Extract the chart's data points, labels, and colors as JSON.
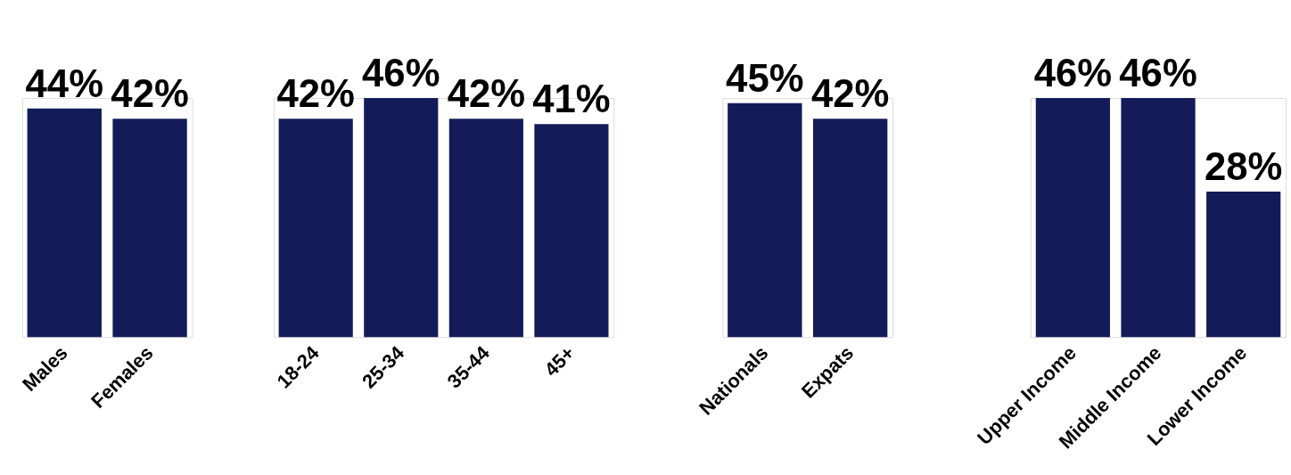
{
  "chart_data": [
    {
      "type": "bar",
      "categories": [
        "Males",
        "Females"
      ],
      "values": [
        44,
        42
      ],
      "value_labels": [
        "44%",
        "42%"
      ],
      "color": "#131c58"
    },
    {
      "type": "bar",
      "categories": [
        "18-24",
        "25-34",
        "35-44",
        "45+"
      ],
      "values": [
        42,
        46,
        42,
        41
      ],
      "value_labels": [
        "42%",
        "46%",
        "42%",
        "41%"
      ],
      "color": "#131c58"
    },
    {
      "type": "bar",
      "categories": [
        "Nationals",
        "Expats"
      ],
      "values": [
        45,
        42
      ],
      "value_labels": [
        "45%",
        "42%"
      ],
      "color": "#131c58"
    },
    {
      "type": "bar",
      "categories": [
        "Upper Income",
        "Middle Income",
        "Lower Income"
      ],
      "values": [
        46,
        46,
        28
      ],
      "value_labels": [
        "46%",
        "46%",
        "28%"
      ],
      "color": "#131c58"
    }
  ]
}
